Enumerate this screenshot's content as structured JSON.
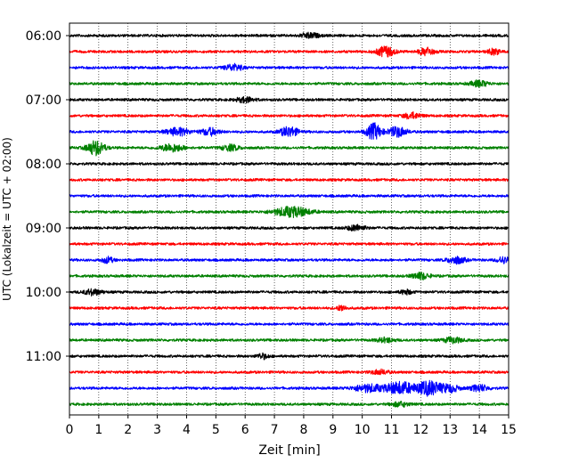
{
  "chart_data": {
    "type": "line",
    "subtype": "helicorder",
    "title": "",
    "xlabel": "Zeit  [min]",
    "ylabel": "UTC (Lokalzeit = UTC + 02:00)",
    "xlim": [
      0,
      15
    ],
    "xticks": [
      0,
      1,
      2,
      3,
      4,
      5,
      6,
      7,
      8,
      9,
      10,
      11,
      12,
      13,
      14,
      15
    ],
    "row_labels": [
      "06:00",
      "07:00",
      "08:00",
      "09:00",
      "10:00",
      "11:00"
    ],
    "rows_per_label": 4,
    "grid": "x",
    "traces": [
      {
        "start": "06:00",
        "color": "#000000",
        "events": [
          {
            "t": 8.2,
            "amp": 0.35,
            "w": 0.3
          }
        ]
      },
      {
        "start": "06:15",
        "color": "#ff0000",
        "events": [
          {
            "t": 10.8,
            "amp": 0.7,
            "w": 0.3
          },
          {
            "t": 12.2,
            "amp": 0.55,
            "w": 0.25
          },
          {
            "t": 14.5,
            "amp": 0.4,
            "w": 0.2
          }
        ]
      },
      {
        "start": "06:30",
        "color": "#0000ff",
        "events": [
          {
            "t": 5.6,
            "amp": 0.45,
            "w": 0.3
          }
        ]
      },
      {
        "start": "06:45",
        "color": "#008000",
        "events": [
          {
            "t": 14.0,
            "amp": 0.4,
            "w": 0.3
          }
        ]
      },
      {
        "start": "07:00",
        "color": "#000000",
        "events": [
          {
            "t": 6.0,
            "amp": 0.35,
            "w": 0.3
          }
        ]
      },
      {
        "start": "07:15",
        "color": "#ff0000",
        "events": [
          {
            "t": 11.7,
            "amp": 0.4,
            "w": 0.3
          }
        ]
      },
      {
        "start": "07:30",
        "color": "#0000ff",
        "events": [
          {
            "t": 3.7,
            "amp": 0.5,
            "w": 0.4
          },
          {
            "t": 4.8,
            "amp": 0.5,
            "w": 0.3
          },
          {
            "t": 7.5,
            "amp": 0.7,
            "w": 0.3
          },
          {
            "t": 10.4,
            "amp": 1.1,
            "w": 0.25
          },
          {
            "t": 11.2,
            "amp": 0.7,
            "w": 0.3
          }
        ]
      },
      {
        "start": "07:45",
        "color": "#008000",
        "events": [
          {
            "t": 0.9,
            "amp": 1.0,
            "w": 0.3
          },
          {
            "t": 3.5,
            "amp": 0.5,
            "w": 0.4
          },
          {
            "t": 5.5,
            "amp": 0.4,
            "w": 0.3
          }
        ]
      },
      {
        "start": "08:00",
        "color": "#000000",
        "events": []
      },
      {
        "start": "08:15",
        "color": "#ff0000",
        "events": []
      },
      {
        "start": "08:30",
        "color": "#0000ff",
        "events": []
      },
      {
        "start": "08:45",
        "color": "#008000",
        "events": [
          {
            "t": 7.6,
            "amp": 0.7,
            "w": 0.6
          }
        ]
      },
      {
        "start": "09:00",
        "color": "#000000",
        "events": [
          {
            "t": 9.8,
            "amp": 0.4,
            "w": 0.3
          }
        ]
      },
      {
        "start": "09:15",
        "color": "#ff0000",
        "events": []
      },
      {
        "start": "09:30",
        "color": "#0000ff",
        "events": [
          {
            "t": 1.3,
            "amp": 0.4,
            "w": 0.2
          },
          {
            "t": 13.2,
            "amp": 0.5,
            "w": 0.3
          },
          {
            "t": 14.8,
            "amp": 0.45,
            "w": 0.2
          }
        ]
      },
      {
        "start": "09:45",
        "color": "#008000",
        "events": [
          {
            "t": 12.0,
            "amp": 0.45,
            "w": 0.3
          }
        ]
      },
      {
        "start": "10:00",
        "color": "#000000",
        "events": [
          {
            "t": 0.8,
            "amp": 0.4,
            "w": 0.3
          },
          {
            "t": 11.5,
            "amp": 0.3,
            "w": 0.2
          }
        ]
      },
      {
        "start": "10:15",
        "color": "#ff0000",
        "events": [
          {
            "t": 9.3,
            "amp": 0.4,
            "w": 0.15
          }
        ]
      },
      {
        "start": "10:30",
        "color": "#0000ff",
        "events": []
      },
      {
        "start": "10:45",
        "color": "#008000",
        "events": [
          {
            "t": 10.8,
            "amp": 0.3,
            "w": 0.3
          },
          {
            "t": 13.1,
            "amp": 0.4,
            "w": 0.3
          }
        ]
      },
      {
        "start": "11:00",
        "color": "#000000",
        "events": [
          {
            "t": 6.6,
            "amp": 0.35,
            "w": 0.2
          }
        ]
      },
      {
        "start": "11:15",
        "color": "#ff0000",
        "events": [
          {
            "t": 10.6,
            "amp": 0.3,
            "w": 0.3
          }
        ]
      },
      {
        "start": "11:30",
        "color": "#0000ff",
        "events": [
          {
            "t": 10.2,
            "amp": 0.5,
            "w": 0.5
          },
          {
            "t": 11.3,
            "amp": 0.85,
            "w": 0.5
          },
          {
            "t": 12.3,
            "amp": 1.0,
            "w": 0.4
          },
          {
            "t": 13.0,
            "amp": 0.5,
            "w": 0.3
          },
          {
            "t": 14.0,
            "amp": 0.45,
            "w": 0.3
          }
        ]
      },
      {
        "start": "11:45",
        "color": "#008000",
        "events": [
          {
            "t": 11.3,
            "amp": 0.3,
            "w": 0.3
          }
        ]
      }
    ]
  }
}
